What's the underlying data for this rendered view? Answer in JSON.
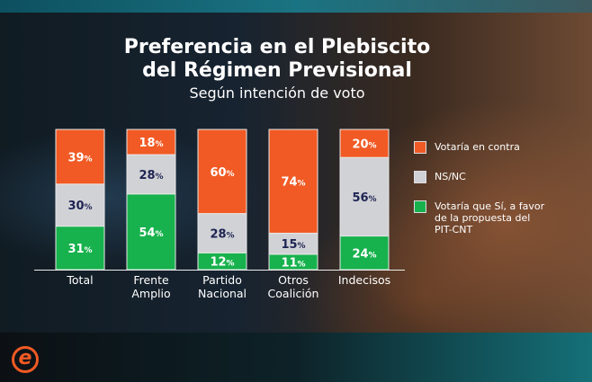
{
  "title_line1": "Preferencia en el Plebiscito",
  "title_line2": "del Régimen Previsional",
  "subtitle": "Según intención de voto",
  "chart_data": {
    "type": "bar",
    "stacked": true,
    "categories": [
      "Total",
      "Frente Amplio",
      "Partido Nacional",
      "Otros Coalición",
      "Indecisos"
    ],
    "series": [
      {
        "name": "Votaría que Sí, a favor de la propuesta del PIT-CNT",
        "color": "#17b24d",
        "values": [
          31,
          54,
          12,
          11,
          24
        ]
      },
      {
        "name": "NS/NC",
        "color": "#d1d2d6",
        "values": [
          30,
          28,
          28,
          15,
          56
        ]
      },
      {
        "name": "Votaría en contra",
        "color": "#f15a24",
        "values": [
          39,
          18,
          60,
          74,
          20
        ]
      }
    ],
    "ylim": [
      0,
      100
    ],
    "unit": "%",
    "legend": "right"
  },
  "logo_text": "e"
}
